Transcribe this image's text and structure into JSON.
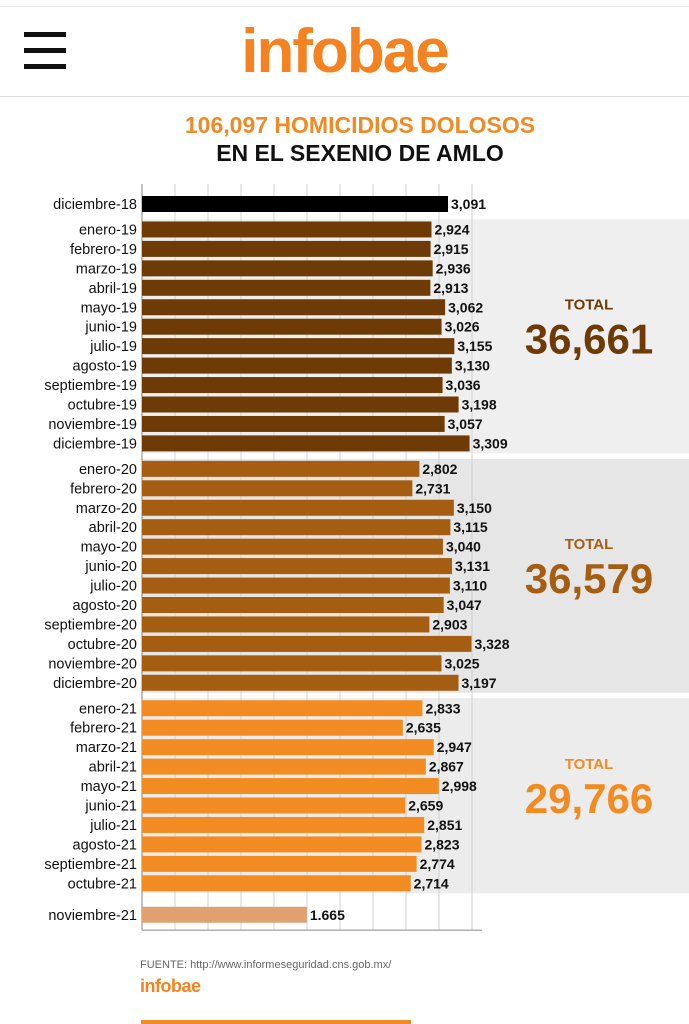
{
  "header": {
    "logo": "infobae",
    "menu_icon": "hamburger-menu-icon"
  },
  "chart_data": {
    "type": "bar",
    "orientation": "horizontal",
    "title": "106,097 HOMICIDIOS DOLOSOS",
    "subtitle": "EN EL SEXENIO DE AMLO",
    "xlim": [
      0,
      4000
    ],
    "grid": true,
    "groups": [
      {
        "color": "#000000",
        "bars": [
          {
            "label": "diciembre-18",
            "value": 3091,
            "text": "3,091"
          }
        ]
      },
      {
        "color": "#6e3a06",
        "total_label": "TOTAL",
        "total_value": "36,661",
        "bars": [
          {
            "label": "enero-19",
            "value": 2924,
            "text": "2,924"
          },
          {
            "label": "febrero-19",
            "value": 2915,
            "text": "2,915"
          },
          {
            "label": "marzo-19",
            "value": 2936,
            "text": "2,936"
          },
          {
            "label": "abril-19",
            "value": 2913,
            "text": "2,913"
          },
          {
            "label": "mayo-19",
            "value": 3062,
            "text": "3,062"
          },
          {
            "label": "junio-19",
            "value": 3026,
            "text": "3,026"
          },
          {
            "label": "julio-19",
            "value": 3155,
            "text": "3,155"
          },
          {
            "label": "agosto-19",
            "value": 3130,
            "text": "3,130"
          },
          {
            "label": "septiembre-19",
            "value": 3036,
            "text": "3,036"
          },
          {
            "label": "octubre-19",
            "value": 3198,
            "text": "3,198"
          },
          {
            "label": "noviembre-19",
            "value": 3057,
            "text": "3,057"
          },
          {
            "label": "diciembre-19",
            "value": 3309,
            "text": "3,309"
          }
        ]
      },
      {
        "color": "#a55d12",
        "total_label": "TOTAL",
        "total_value": "36,579",
        "bars": [
          {
            "label": "enero-20",
            "value": 2802,
            "text": "2,802"
          },
          {
            "label": "febrero-20",
            "value": 2731,
            "text": "2,731"
          },
          {
            "label": "marzo-20",
            "value": 3150,
            "text": "3,150"
          },
          {
            "label": "abril-20",
            "value": 3115,
            "text": "3,115"
          },
          {
            "label": "mayo-20",
            "value": 3040,
            "text": "3,040"
          },
          {
            "label": "junio-20",
            "value": 3131,
            "text": "3,131"
          },
          {
            "label": "julio-20",
            "value": 3110,
            "text": "3,110"
          },
          {
            "label": "agosto-20",
            "value": 3047,
            "text": "3,047"
          },
          {
            "label": "septiembre-20",
            "value": 2903,
            "text": "2,903"
          },
          {
            "label": "octubre-20",
            "value": 3328,
            "text": "3,328"
          },
          {
            "label": "noviembre-20",
            "value": 3025,
            "text": "3,025"
          },
          {
            "label": "diciembre-20",
            "value": 3197,
            "text": "3,197"
          }
        ]
      },
      {
        "color": "#f28c22",
        "total_label": "TOTAL",
        "total_value": "29,766",
        "bars": [
          {
            "label": "enero-21",
            "value": 2833,
            "text": "2,833"
          },
          {
            "label": "febrero-21",
            "value": 2635,
            "text": "2,635"
          },
          {
            "label": "marzo-21",
            "value": 2947,
            "text": "2,947"
          },
          {
            "label": "abril-21",
            "value": 2867,
            "text": "2,867"
          },
          {
            "label": "mayo-21",
            "value": 2998,
            "text": "2,998"
          },
          {
            "label": "junio-21",
            "value": 2659,
            "text": "2,659"
          },
          {
            "label": "julio-21",
            "value": 2851,
            "text": "2,851"
          },
          {
            "label": "agosto-21",
            "value": 2823,
            "text": "2,823"
          },
          {
            "label": "septiembre-21",
            "value": 2774,
            "text": "2,774"
          },
          {
            "label": "octubre-21",
            "value": 2714,
            "text": "2,714"
          }
        ]
      },
      {
        "color": "#e0a070",
        "bars": [
          {
            "label": "noviembre-21",
            "value": 1665,
            "text": "1.665"
          }
        ]
      }
    ]
  },
  "source": "FUENTE: http://www.informeseguridad.cns.gob.mx/",
  "footer_logo": "infobae"
}
